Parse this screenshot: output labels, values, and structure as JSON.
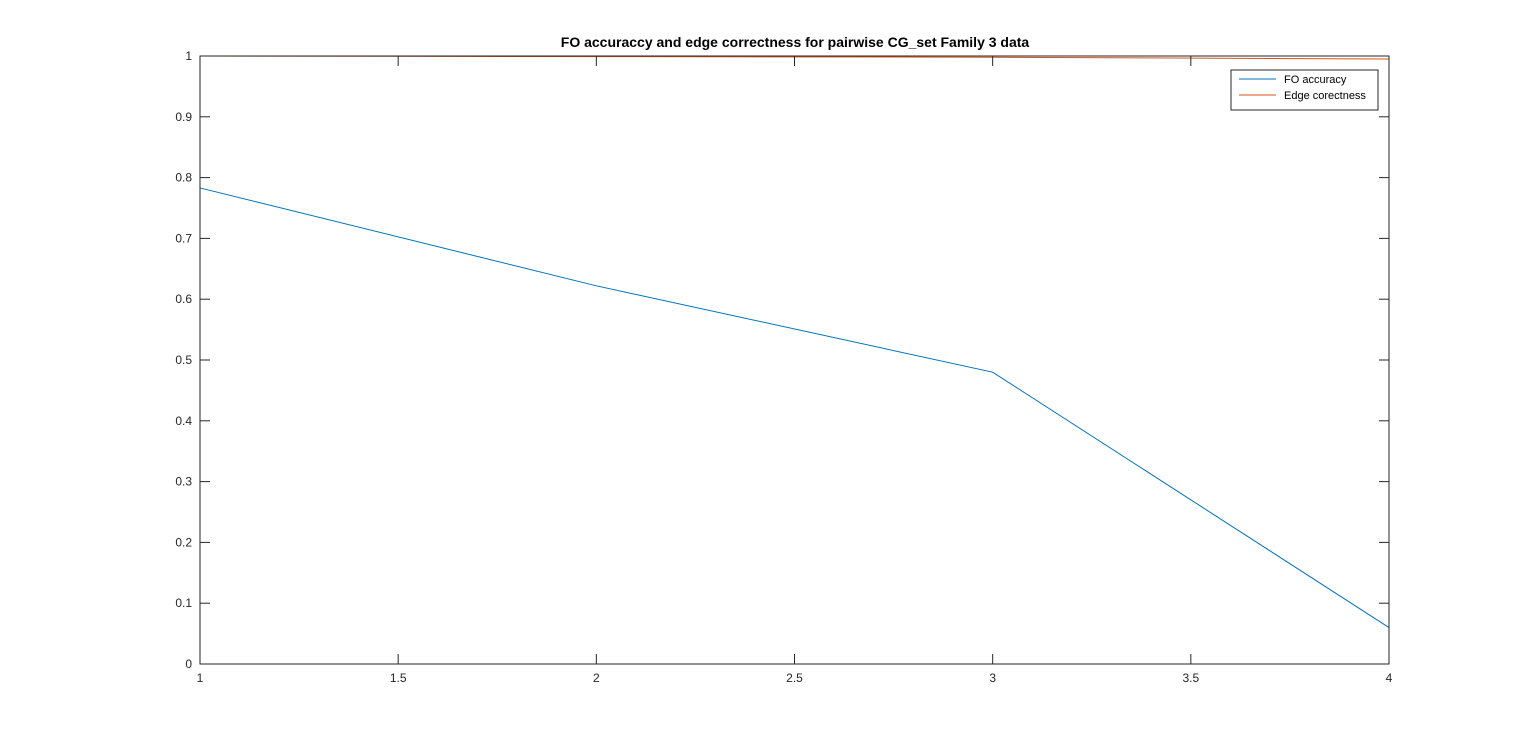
{
  "chart_data": {
    "type": "line",
    "title": "FO accuraccy and edge correctness for pairwise CG_set Family 3 data",
    "xlabel": "",
    "ylabel": "",
    "xlim": [
      1,
      4
    ],
    "ylim": [
      0,
      1
    ],
    "x_ticks": [
      1,
      1.5,
      2,
      2.5,
      3,
      3.5,
      4
    ],
    "x_tick_labels": [
      "1",
      "1.5",
      "2",
      "2.5",
      "3",
      "3.5",
      "4"
    ],
    "y_ticks": [
      0,
      0.1,
      0.2,
      0.3,
      0.4,
      0.5,
      0.6,
      0.7,
      0.8,
      0.9,
      1
    ],
    "y_tick_labels": [
      "0",
      "0.1",
      "0.2",
      "0.3",
      "0.4",
      "0.5",
      "0.6",
      "0.7",
      "0.8",
      "0.9",
      "1"
    ],
    "grid": false,
    "legend_position": "top-right",
    "x": [
      1,
      2,
      3,
      4
    ],
    "series": [
      {
        "name": "FO accuracy",
        "color": "#0072BD",
        "values": [
          0.783,
          0.622,
          0.48,
          0.06
        ]
      },
      {
        "name": "Edge corectness",
        "color": "#D95319",
        "values": [
          1.0,
          0.999,
          0.998,
          0.995
        ]
      }
    ]
  }
}
